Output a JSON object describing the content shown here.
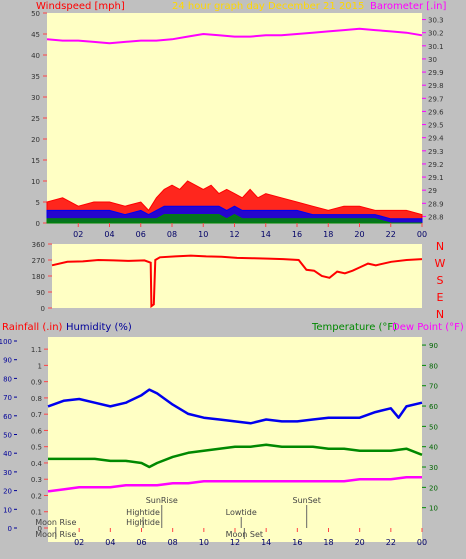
{
  "colors": {
    "background": "#c0c0c0",
    "plot_bg": "#ffffc4",
    "red": "#ff0000",
    "blue": "#0000ee",
    "green": "#008800",
    "magenta": "#ff00ff",
    "gold": "#ffd700",
    "tick": "#ff4444",
    "dark_blue": "#000099"
  },
  "header": {
    "wind_title": "Windspeed [mph]",
    "center_title": "24 hour graph day   December 21 2015",
    "baro_title": "Barometer [.in]"
  },
  "compass_letters": [
    "N",
    "W",
    "S",
    "E",
    "N"
  ],
  "lower_header": {
    "rain_title": "Rainfall (.in)",
    "humidity_title": "Humidity (%)",
    "temp_title": "Temperature (°F)",
    "dew_title": "Dew Point (°F)"
  },
  "events": [
    {
      "label": "Moon Rise",
      "hour": 0.5,
      "row": 1
    },
    {
      "label": "Hightide",
      "hour": 6.1,
      "row": 2
    },
    {
      "label": "SunRise",
      "hour": 7.3,
      "row": 3
    },
    {
      "label": "Lowtide",
      "hour": 12.4,
      "row": 2
    },
    {
      "label": "SunSet",
      "hour": 16.6,
      "row": 3
    },
    {
      "label": "Moon Set",
      "hour": 12.6,
      "row": 1
    },
    {
      "label": "Moon Rise",
      "hour": 0.5,
      "row": 0
    },
    {
      "label": "Hightide",
      "hour": 6.1,
      "row": 0
    }
  ],
  "chart_data": [
    {
      "id": "wind_baro",
      "type": "line",
      "x_tick_labels": [
        "02",
        "04",
        "06",
        "08",
        "10",
        "12",
        "14",
        "16",
        "18",
        "20",
        "22",
        "00"
      ],
      "x_tick_hours": [
        2,
        4,
        6,
        8,
        10,
        12,
        14,
        16,
        18,
        20,
        22,
        24
      ],
      "xlim": [
        0,
        24
      ],
      "y_left": {
        "label": "Windspeed [mph]",
        "ylim": [
          0,
          50
        ],
        "ticks": [
          0,
          5,
          10,
          15,
          20,
          25,
          30,
          35,
          40,
          45,
          50
        ]
      },
      "y_right": {
        "label": "Barometer [.in]",
        "ylim": [
          28.75,
          30.35
        ],
        "ticks": [
          28.8,
          28.9,
          29.0,
          29.1,
          29.2,
          29.3,
          29.4,
          29.5,
          29.6,
          29.7,
          29.8,
          29.9,
          30.0,
          30.1,
          30.2,
          30.3
        ],
        "tick_labels": [
          "28.8",
          "28.9",
          "29",
          "29.1",
          "29.2",
          "29.3",
          "29.4",
          "29.5",
          "29.6",
          "29.7",
          "29.8",
          "29.9",
          "30",
          "30.1",
          "30.2",
          "30.3"
        ]
      },
      "series": [
        {
          "name": "Barometer",
          "axis": "right",
          "color": "#ff00ff",
          "x": [
            0,
            1,
            2,
            3,
            4,
            5,
            6,
            7,
            8,
            9,
            10,
            11,
            12,
            13,
            14,
            15,
            16,
            17,
            18,
            19,
            20,
            21,
            22,
            23,
            24
          ],
          "y": [
            30.15,
            30.14,
            30.14,
            30.13,
            30.12,
            30.13,
            30.14,
            30.14,
            30.15,
            30.17,
            30.19,
            30.18,
            30.17,
            30.17,
            30.18,
            30.18,
            30.19,
            30.2,
            30.21,
            30.22,
            30.23,
            30.22,
            30.21,
            30.2,
            30.18
          ]
        },
        {
          "name": "Gust",
          "axis": "left",
          "color": "#ff0000",
          "x": [
            0,
            1,
            2,
            3,
            4,
            5,
            6,
            6.5,
            7,
            7.5,
            8,
            8.5,
            9,
            9.5,
            10,
            10.5,
            11,
            11.5,
            12,
            12.5,
            13,
            13.5,
            14,
            15,
            16,
            17,
            18,
            19,
            20,
            21,
            22,
            23,
            24
          ],
          "y": [
            5,
            6,
            4,
            5,
            5,
            4,
            5,
            3,
            6,
            8,
            9,
            8,
            10,
            9,
            8,
            9,
            7,
            8,
            7,
            6,
            8,
            6,
            7,
            6,
            5,
            4,
            3,
            4,
            4,
            3,
            3,
            3,
            2
          ]
        },
        {
          "name": "Average",
          "axis": "left",
          "color": "#0000ee",
          "x": [
            0,
            1,
            2,
            3,
            4,
            5,
            6,
            6.5,
            7,
            7.5,
            8,
            8.5,
            9,
            9.5,
            10,
            10.5,
            11,
            11.5,
            12,
            12.5,
            13,
            13.5,
            14,
            15,
            16,
            17,
            18,
            19,
            20,
            21,
            22,
            23,
            24
          ],
          "y": [
            3,
            3,
            3,
            3,
            3,
            2,
            3,
            2,
            3,
            4,
            4,
            4,
            4,
            4,
            4,
            4,
            4,
            3,
            4,
            3,
            3,
            3,
            3,
            3,
            3,
            2,
            2,
            2,
            2,
            2,
            1,
            1,
            1
          ]
        },
        {
          "name": "Low",
          "axis": "left",
          "color": "#008800",
          "x": [
            0,
            1,
            2,
            3,
            4,
            5,
            6,
            6.5,
            7,
            7.5,
            8,
            8.5,
            9,
            9.5,
            10,
            10.5,
            11,
            11.5,
            12,
            12.5,
            13,
            13.5,
            14,
            15,
            16,
            17,
            18,
            19,
            20,
            21,
            22,
            23,
            24
          ],
          "y": [
            1,
            1,
            1,
            1,
            1,
            1,
            1,
            1,
            1,
            2,
            2,
            2,
            2,
            2,
            2,
            2,
            2,
            1,
            2,
            1,
            1,
            1,
            1,
            1,
            1,
            1,
            1,
            1,
            1,
            1,
            0,
            0,
            0
          ]
        }
      ]
    },
    {
      "id": "wind_direction",
      "type": "line",
      "xlim": [
        0,
        24
      ],
      "y_left": {
        "ylim": [
          0,
          360
        ],
        "ticks": [
          0,
          90,
          180,
          270,
          360
        ],
        "tick_labels": [
          "0",
          "90",
          "180",
          "270",
          "360"
        ]
      },
      "series": [
        {
          "name": "Wind Direction",
          "color": "#ff0000",
          "x": [
            0,
            1,
            2,
            3,
            4,
            5,
            6,
            6.4,
            6.45,
            6.6,
            6.7,
            7,
            8,
            9,
            10,
            11,
            12,
            13,
            14,
            15,
            16,
            16.5,
            17,
            17.5,
            18,
            18.5,
            19,
            19.5,
            20,
            20.5,
            21,
            22,
            23,
            24
          ],
          "y": [
            240,
            260,
            262,
            270,
            268,
            265,
            268,
            255,
            10,
            20,
            270,
            285,
            290,
            295,
            290,
            288,
            282,
            280,
            278,
            275,
            270,
            215,
            210,
            180,
            170,
            205,
            195,
            210,
            230,
            250,
            240,
            260,
            270,
            275
          ]
        }
      ]
    },
    {
      "id": "rain_humidity_temp",
      "type": "line",
      "xlim": [
        0,
        24
      ],
      "y_left_outer": {
        "label": "Humidity (%)",
        "ylim": [
          0,
          100
        ],
        "ticks": [
          0,
          10,
          20,
          30,
          40,
          50,
          60,
          70,
          80,
          90,
          100
        ]
      },
      "y_left_inner": {
        "label": "Rainfall (.in)",
        "ylim": [
          0,
          1.15
        ],
        "ticks": [
          0,
          0.1,
          0.2,
          0.3,
          0.4,
          0.5,
          0.6,
          0.7,
          0.8,
          0.9,
          1.0,
          1.1
        ],
        "tick_labels": [
          "0",
          "0.1",
          "0.2",
          "0.3",
          "0.4",
          "0.5",
          "0.6",
          "0.7",
          "0.8",
          "0.9",
          "1",
          "1.1"
        ]
      },
      "y_right": {
        "label": "Temperature (°F)",
        "ylim": [
          0,
          92
        ],
        "ticks": [
          10,
          20,
          30,
          40,
          50,
          60,
          70,
          80,
          90
        ]
      },
      "series": [
        {
          "name": "Humidity",
          "axis": "left_outer",
          "color": "#0000ee",
          "x": [
            0,
            1,
            2,
            3,
            4,
            5,
            6,
            6.5,
            7,
            7.5,
            8,
            9,
            10,
            11,
            12,
            13,
            14,
            15,
            16,
            17,
            18,
            19,
            20,
            21,
            22,
            22.5,
            23,
            24
          ],
          "y": [
            65,
            68,
            69,
            67,
            65,
            67,
            71,
            74,
            72,
            69,
            66,
            61,
            59,
            58,
            57,
            56,
            58,
            57,
            57,
            58,
            59,
            59,
            59,
            62,
            64,
            59,
            65,
            67
          ]
        },
        {
          "name": "Temperature",
          "axis": "right",
          "color": "#008800",
          "x": [
            0,
            1,
            2,
            3,
            4,
            5,
            6,
            6.5,
            7,
            8,
            9,
            10,
            11,
            12,
            13,
            14,
            15,
            16,
            17,
            18,
            19,
            20,
            21,
            22,
            23,
            24
          ],
          "y": [
            34,
            34,
            34,
            34,
            33,
            33,
            32,
            30,
            32,
            35,
            37,
            38,
            39,
            40,
            40,
            41,
            40,
            40,
            40,
            39,
            39,
            38,
            38,
            38,
            39,
            36
          ]
        },
        {
          "name": "Dew Point",
          "axis": "right",
          "color": "#ff00ff",
          "x": [
            0,
            1,
            2,
            3,
            4,
            5,
            6,
            7,
            8,
            9,
            10,
            11,
            12,
            13,
            14,
            15,
            16,
            17,
            18,
            19,
            20,
            21,
            22,
            23,
            24
          ],
          "y": [
            18,
            19,
            20,
            20,
            20,
            21,
            21,
            21,
            22,
            22,
            23,
            23,
            23,
            23,
            23,
            23,
            23,
            23,
            23,
            23,
            24,
            24,
            24,
            25,
            25
          ]
        }
      ]
    }
  ]
}
